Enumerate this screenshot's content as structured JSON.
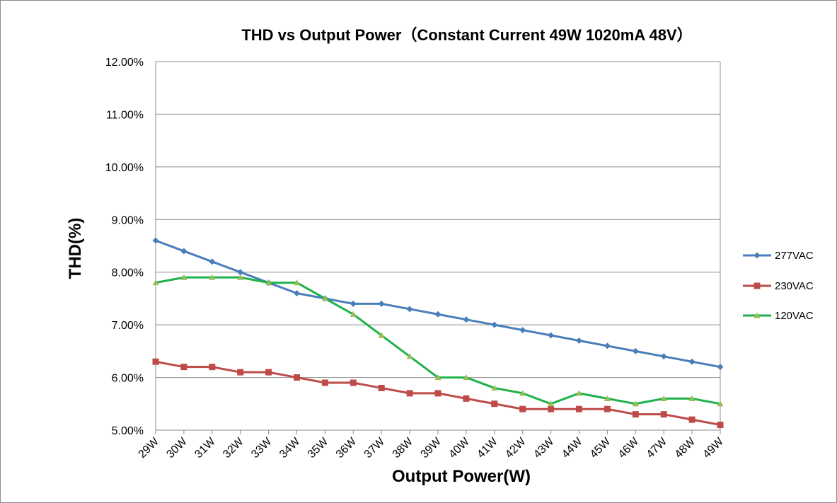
{
  "chart_data": {
    "type": "line",
    "title": "THD vs Output Power（Constant Current 49W   1020mA 48V）",
    "xlabel": "Output Power(W)",
    "ylabel": "THD(%)",
    "categories": [
      "29W",
      "30W",
      "31W",
      "32W",
      "33W",
      "34W",
      "35W",
      "36W",
      "37W",
      "38W",
      "39W",
      "40W",
      "41W",
      "42W",
      "43W",
      "44W",
      "45W",
      "46W",
      "47W",
      "48W",
      "49W"
    ],
    "ylim": [
      5.0,
      12.0
    ],
    "yticks": [
      5.0,
      6.0,
      7.0,
      8.0,
      9.0,
      10.0,
      11.0,
      12.0
    ],
    "ytick_labels": [
      "5.00%",
      "6.00%",
      "7.00%",
      "8.00%",
      "9.00%",
      "10.00%",
      "11.00%",
      "12.00%"
    ],
    "grid": true,
    "legend_position": "right",
    "series": [
      {
        "name": "277VAC",
        "color": "#4a7ebb",
        "marker": "diamond",
        "values": [
          8.6,
          8.4,
          8.2,
          8.0,
          7.8,
          7.6,
          7.5,
          7.4,
          7.4,
          7.3,
          7.2,
          7.1,
          7.0,
          6.9,
          6.8,
          6.7,
          6.6,
          6.5,
          6.4,
          6.3,
          6.2
        ]
      },
      {
        "name": "230VAC",
        "color": "#be4b48",
        "marker": "square",
        "values": [
          6.3,
          6.2,
          6.2,
          6.1,
          6.1,
          6.0,
          5.9,
          5.9,
          5.8,
          5.7,
          5.7,
          5.6,
          5.5,
          5.4,
          5.4,
          5.4,
          5.4,
          5.3,
          5.3,
          5.2,
          5.1
        ]
      },
      {
        "name": "120VAC",
        "color": "#1fb24a",
        "marker": "triangle",
        "marker_color": "#9bbb59",
        "values": [
          7.8,
          7.9,
          7.9,
          7.9,
          7.8,
          7.8,
          7.5,
          7.2,
          6.8,
          6.4,
          6.0,
          6.0,
          5.8,
          5.7,
          5.5,
          5.7,
          5.6,
          5.5,
          5.6,
          5.6,
          5.5
        ]
      }
    ]
  }
}
